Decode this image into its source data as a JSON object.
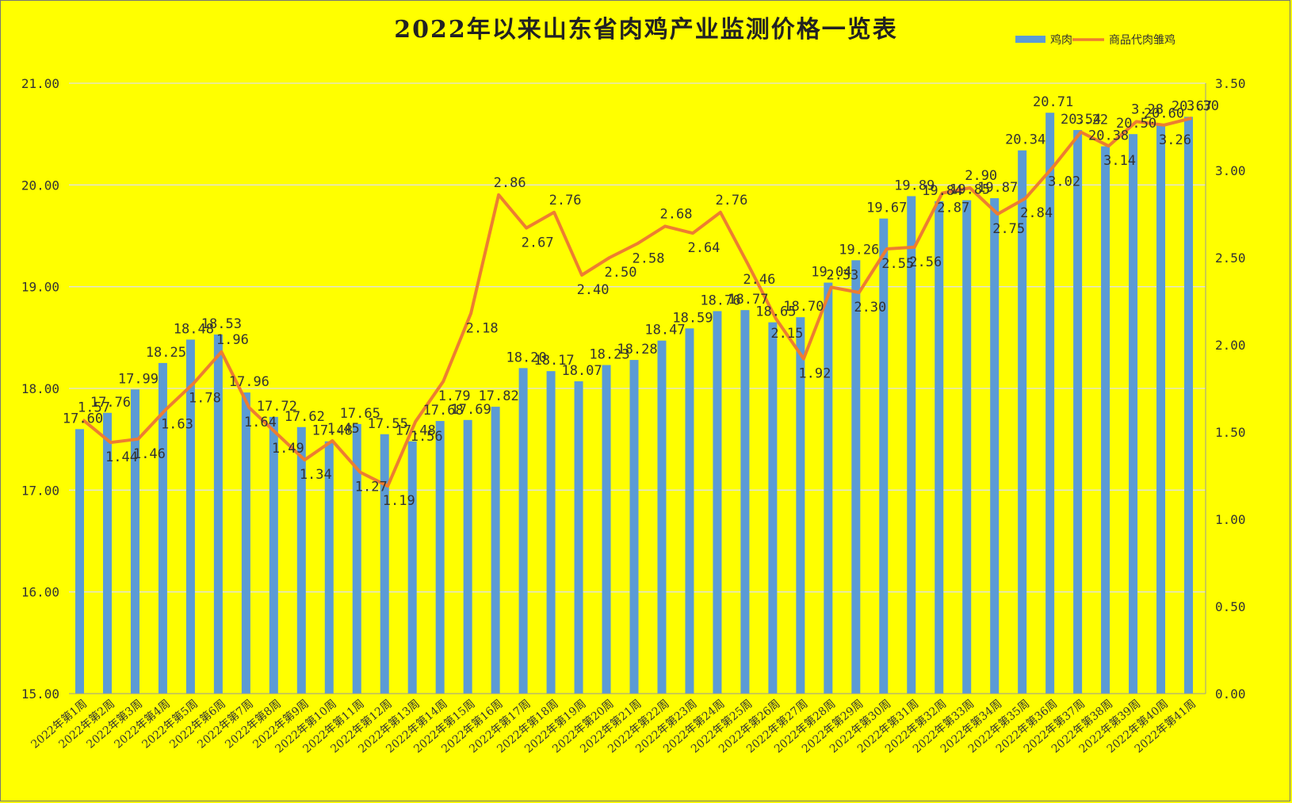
{
  "chart_data": {
    "type": "bar",
    "title": "2022年以来山东省肉鸡产业监测价格一览表",
    "categories": [
      "2022年第1周",
      "2022年第2周",
      "2022年第3周",
      "2022年第4周",
      "2022年第5周",
      "2022年第6周",
      "2022年第7周",
      "2022年第8周",
      "2022年第9周",
      "2022年第10周",
      "2022年第11周",
      "2022年第12周",
      "2022年第13周",
      "2022年第14周",
      "2022年第15周",
      "2022年第16周",
      "2022年第17周",
      "2022年第18周",
      "2022年第19周",
      "2022年第20周",
      "2022年第21周",
      "2022年第22周",
      "2022年第23周",
      "2022年第24周",
      "2022年第25周",
      "2022年第26周",
      "2022年第27周",
      "2022年第28周",
      "2022年第29周",
      "2022年第30周",
      "2022年第31周",
      "2022年第32周",
      "2022年第33周",
      "2022年第34周",
      "2022年第35周",
      "2022年第36周",
      "2022年第37周",
      "2022年第38周",
      "2022年第39周",
      "2022年第40周",
      "2022年第41周"
    ],
    "series": [
      {
        "name": "鸡肉",
        "type": "bar",
        "axis": "left",
        "color": "#5b9bd5",
        "values": [
          17.6,
          17.76,
          17.99,
          18.25,
          18.48,
          18.53,
          17.96,
          17.72,
          17.62,
          17.48,
          17.65,
          17.55,
          17.48,
          17.68,
          17.69,
          17.82,
          18.2,
          18.17,
          18.07,
          18.23,
          18.28,
          18.47,
          18.59,
          18.76,
          18.77,
          18.65,
          18.7,
          19.04,
          19.26,
          19.67,
          19.89,
          19.84,
          19.85,
          19.87,
          20.34,
          20.71,
          20.54,
          20.38,
          20.5,
          20.6,
          20.67
        ]
      },
      {
        "name": "商品代肉雏鸡",
        "type": "line",
        "axis": "right",
        "color": "#ed7d31",
        "values": [
          1.57,
          1.44,
          1.46,
          1.63,
          1.78,
          1.96,
          1.64,
          1.49,
          1.34,
          1.45,
          1.27,
          1.19,
          1.56,
          1.79,
          2.18,
          2.86,
          2.67,
          2.76,
          2.4,
          2.5,
          2.58,
          2.68,
          2.64,
          2.76,
          2.46,
          2.15,
          1.92,
          2.33,
          2.3,
          2.55,
          2.56,
          2.87,
          2.9,
          2.75,
          2.84,
          3.02,
          3.22,
          3.14,
          3.28,
          3.26,
          3.3
        ]
      }
    ],
    "y_left": {
      "min": 15,
      "max": 21,
      "step": 1,
      "ticks": [
        "15.00",
        "16.00",
        "17.00",
        "18.00",
        "19.00",
        "20.00",
        "21.00"
      ]
    },
    "y_right": {
      "min": 0,
      "max": 3.5,
      "step": 0.5,
      "ticks": [
        "0.00",
        "0.50",
        "1.00",
        "1.50",
        "2.00",
        "2.50",
        "3.00",
        "3.50"
      ]
    },
    "grid": true,
    "legend_position": "top-right",
    "background_color": "#ffff00"
  }
}
